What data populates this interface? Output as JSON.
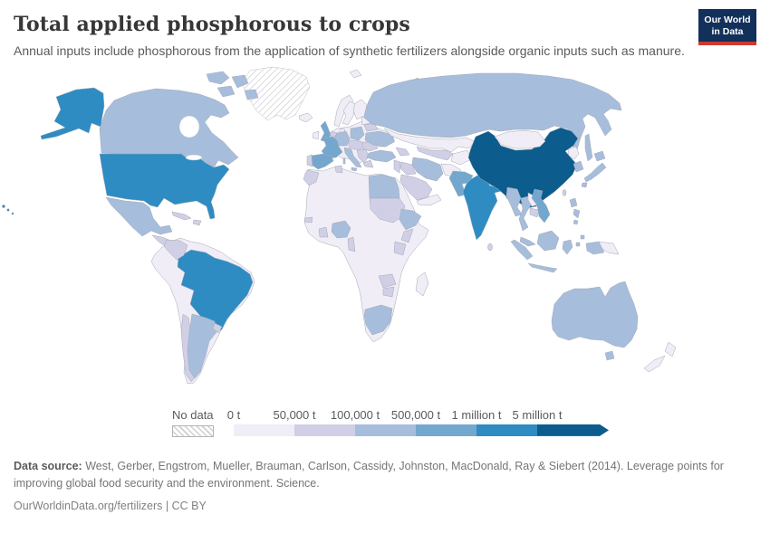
{
  "header": {
    "title": "Total applied phosphorous to crops",
    "subtitle": "Annual inputs include phosphorous from the application of synthetic fertilizers alongside organic inputs such as manure."
  },
  "logo": {
    "line1": "Our World",
    "line2": "in Data",
    "bg_color": "#12305a",
    "accent_color": "#cc3a31"
  },
  "footer": {
    "source_label": "Data source:",
    "source_text": " West, Gerber, Engstrom, Mueller, Brauman, Carlson, Cassidy, Johnston, MacDonald, Ray & Siebert (2014). Leverage points for improving global food security and the environment. Science.",
    "link_text": "OurWorldinData.org/fertilizers | CC BY"
  },
  "chart_data": {
    "type": "choropleth",
    "title": "Total applied phosphorous to crops",
    "unit": "tonnes",
    "legend": {
      "position": "bottom",
      "no_data_label": "No data",
      "bins": [
        {
          "tick": "0 t",
          "range": "0 t – 50,000 t",
          "color": "#f0edf6"
        },
        {
          "tick": "50,000 t",
          "range": "50,000 t – 100,000 t",
          "color": "#d0cfe5"
        },
        {
          "tick": "100,000 t",
          "range": "100,000 t – 500,000 t",
          "color": "#a7bddc"
        },
        {
          "tick": "500,000 t",
          "range": "500,000 t – 1 million t",
          "color": "#74a7ce"
        },
        {
          "tick": "1 million t",
          "range": "1 million t – 5 million t",
          "color": "#2e8cc3"
        },
        {
          "tick": "5 million t",
          "range": "5 million t and over",
          "color": "#0c5c8e"
        }
      ]
    },
    "regions": {
      "greenland": "no-data",
      "svalbard": 0,
      "iceland": 0,
      "ireland": 0,
      "norway": 0,
      "sweden": 0,
      "finland": 0,
      "denmark": 0,
      "baltics": 0,
      "europe-other": 0,
      "south-america-other": 0,
      "kazakhstan": 0,
      "central-asia-east": 0,
      "afghanistan": 0,
      "yemen-oman": 0,
      "mongolia": 0,
      "north-korea": 0,
      "laos": 0,
      "papua-new-guinea": 0,
      "new-zealand": 0,
      "africa-other": 0,
      "madagascar": 0,
      "central-america": 1,
      "cuba": 1,
      "hispaniola": 1,
      "colombia": 1,
      "chile": 1,
      "uruguay": 1,
      "belarus": 1,
      "benelux": 1,
      "portugal": 1,
      "central-europe": 1,
      "romania": 1,
      "balkans": 1,
      "greece": 1,
      "caucasus": 1,
      "levant": 1,
      "iraq": 1,
      "central-asia": 1,
      "saudi-arabia": 1,
      "nepal": 1,
      "sri-lanka": 1,
      "taiwan": 1,
      "cambodia": 1,
      "morocco": 1,
      "tunisia": 1,
      "sudan": 1,
      "kenya": 1,
      "tanzania": 1,
      "ghana": 1,
      "senegal": 1,
      "cameroon": 1,
      "zambia": 1,
      "zimbabwe": 1,
      "canada": 2,
      "canada-arctic": 2,
      "mexico": 2,
      "russia": 2,
      "novaya-zemlya": 2,
      "sakhalin": 2,
      "poland": 2,
      "germany": 2,
      "italy": 2,
      "ukraine": 2,
      "turkey": 2,
      "iran": 2,
      "egypt": 2,
      "ethiopia": 2,
      "nigeria": 2,
      "south-africa": 2,
      "argentina": 2,
      "australia": 2,
      "tasmania": 2,
      "japan": 2,
      "south-korea": 2,
      "myanmar": 2,
      "thailand": 2,
      "malaysia": 2,
      "indonesia": 2,
      "philippines": 2,
      "france": 3,
      "spain": 3,
      "united-kingdom": 3,
      "pakistan": 3,
      "vietnam": 3,
      "bangladesh": 3,
      "usa": 4,
      "alaska": 4,
      "hawaii": 4,
      "india": 4,
      "brazil": 4,
      "china": 5,
      "hainan": 5
    }
  }
}
